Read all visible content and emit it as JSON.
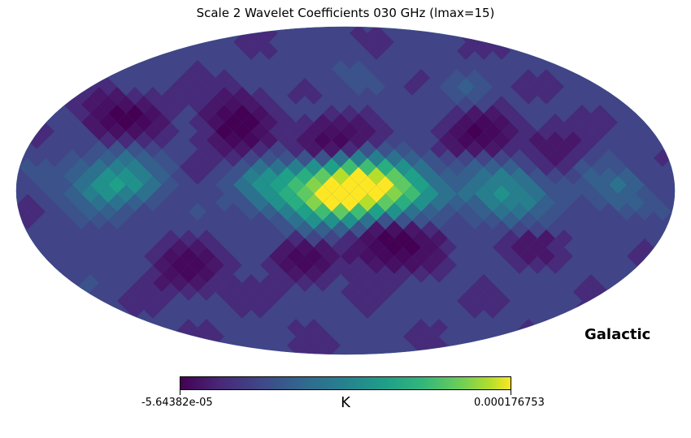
{
  "title": "Scale 2 Wavelet Coefficients 030 GHz (lmax=15)",
  "coordinate_label": "Galactic",
  "colorbar": {
    "min_label": "-5.64382e-05",
    "max_label": "0.000176753",
    "unit": "K",
    "colormap": "viridis"
  },
  "map_data": {
    "projection": "Mollweide",
    "value_range": [
      -5.64382e-05,
      0.000176753
    ]
  },
  "colors": {
    "background": "#ffffff",
    "viridis_low": "#440154",
    "viridis_high": "#fde725"
  }
}
